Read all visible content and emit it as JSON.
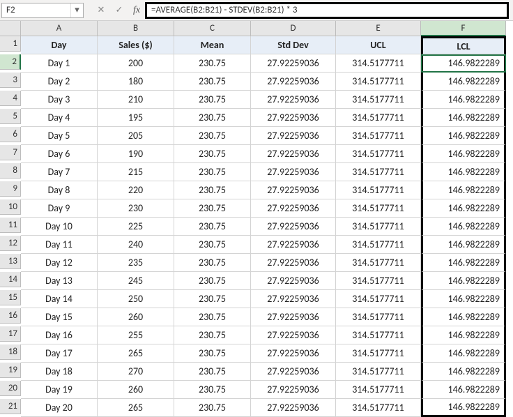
{
  "nameBox": "F2",
  "formula": "=AVERAGE(B2:B21) - STDEV(B2:B21) * 3",
  "fxLabel": "fx",
  "columns": [
    "A",
    "B",
    "C",
    "D",
    "E",
    "F"
  ],
  "headers": [
    "Day",
    "Sales ($)",
    "Mean",
    "Std Dev",
    "UCL",
    "LCL"
  ],
  "rows": [
    {
      "n": 1,
      "day": "Day 1",
      "sales": "200",
      "mean": "230.75",
      "std": "27.92259036",
      "ucl": "314.5177711",
      "lcl": "146.9822289"
    },
    {
      "n": 2,
      "day": "Day 2",
      "sales": "180",
      "mean": "230.75",
      "std": "27.92259036",
      "ucl": "314.5177711",
      "lcl": "146.9822289"
    },
    {
      "n": 3,
      "day": "Day 3",
      "sales": "210",
      "mean": "230.75",
      "std": "27.92259036",
      "ucl": "314.5177711",
      "lcl": "146.9822289"
    },
    {
      "n": 4,
      "day": "Day 4",
      "sales": "195",
      "mean": "230.75",
      "std": "27.92259036",
      "ucl": "314.5177711",
      "lcl": "146.9822289"
    },
    {
      "n": 5,
      "day": "Day 5",
      "sales": "205",
      "mean": "230.75",
      "std": "27.92259036",
      "ucl": "314.5177711",
      "lcl": "146.9822289"
    },
    {
      "n": 6,
      "day": "Day 6",
      "sales": "190",
      "mean": "230.75",
      "std": "27.92259036",
      "ucl": "314.5177711",
      "lcl": "146.9822289"
    },
    {
      "n": 7,
      "day": "Day 7",
      "sales": "215",
      "mean": "230.75",
      "std": "27.92259036",
      "ucl": "314.5177711",
      "lcl": "146.9822289"
    },
    {
      "n": 8,
      "day": "Day 8",
      "sales": "220",
      "mean": "230.75",
      "std": "27.92259036",
      "ucl": "314.5177711",
      "lcl": "146.9822289"
    },
    {
      "n": 9,
      "day": "Day 9",
      "sales": "230",
      "mean": "230.75",
      "std": "27.92259036",
      "ucl": "314.5177711",
      "lcl": "146.9822289"
    },
    {
      "n": 10,
      "day": "Day 10",
      "sales": "225",
      "mean": "230.75",
      "std": "27.92259036",
      "ucl": "314.5177711",
      "lcl": "146.9822289"
    },
    {
      "n": 11,
      "day": "Day 11",
      "sales": "240",
      "mean": "230.75",
      "std": "27.92259036",
      "ucl": "314.5177711",
      "lcl": "146.9822289"
    },
    {
      "n": 12,
      "day": "Day 12",
      "sales": "235",
      "mean": "230.75",
      "std": "27.92259036",
      "ucl": "314.5177711",
      "lcl": "146.9822289"
    },
    {
      "n": 13,
      "day": "Day 13",
      "sales": "245",
      "mean": "230.75",
      "std": "27.92259036",
      "ucl": "314.5177711",
      "lcl": "146.9822289"
    },
    {
      "n": 14,
      "day": "Day 14",
      "sales": "250",
      "mean": "230.75",
      "std": "27.92259036",
      "ucl": "314.5177711",
      "lcl": "146.9822289"
    },
    {
      "n": 15,
      "day": "Day 15",
      "sales": "260",
      "mean": "230.75",
      "std": "27.92259036",
      "ucl": "314.5177711",
      "lcl": "146.9822289"
    },
    {
      "n": 16,
      "day": "Day 16",
      "sales": "255",
      "mean": "230.75",
      "std": "27.92259036",
      "ucl": "314.5177711",
      "lcl": "146.9822289"
    },
    {
      "n": 17,
      "day": "Day 17",
      "sales": "265",
      "mean": "230.75",
      "std": "27.92259036",
      "ucl": "314.5177711",
      "lcl": "146.9822289"
    },
    {
      "n": 18,
      "day": "Day 18",
      "sales": "270",
      "mean": "230.75",
      "std": "27.92259036",
      "ucl": "314.5177711",
      "lcl": "146.9822289"
    },
    {
      "n": 19,
      "day": "Day 19",
      "sales": "260",
      "mean": "230.75",
      "std": "27.92259036",
      "ucl": "314.5177711",
      "lcl": "146.9822289"
    },
    {
      "n": 20,
      "day": "Day 20",
      "sales": "265",
      "mean": "230.75",
      "std": "27.92259036",
      "ucl": "314.5177711",
      "lcl": "146.9822289"
    }
  ],
  "activeCell": {
    "col": "F",
    "row": 2
  },
  "highlight": {
    "col": "F",
    "rowStart": 1,
    "rowEnd": 21
  },
  "colors": {
    "headerFill": "#e7eef7",
    "gridBorder": "#d4d4d4",
    "colHeadFill": "#e6e6e6",
    "selectionGreen": "#217346",
    "highlightBorder": "#000000"
  }
}
